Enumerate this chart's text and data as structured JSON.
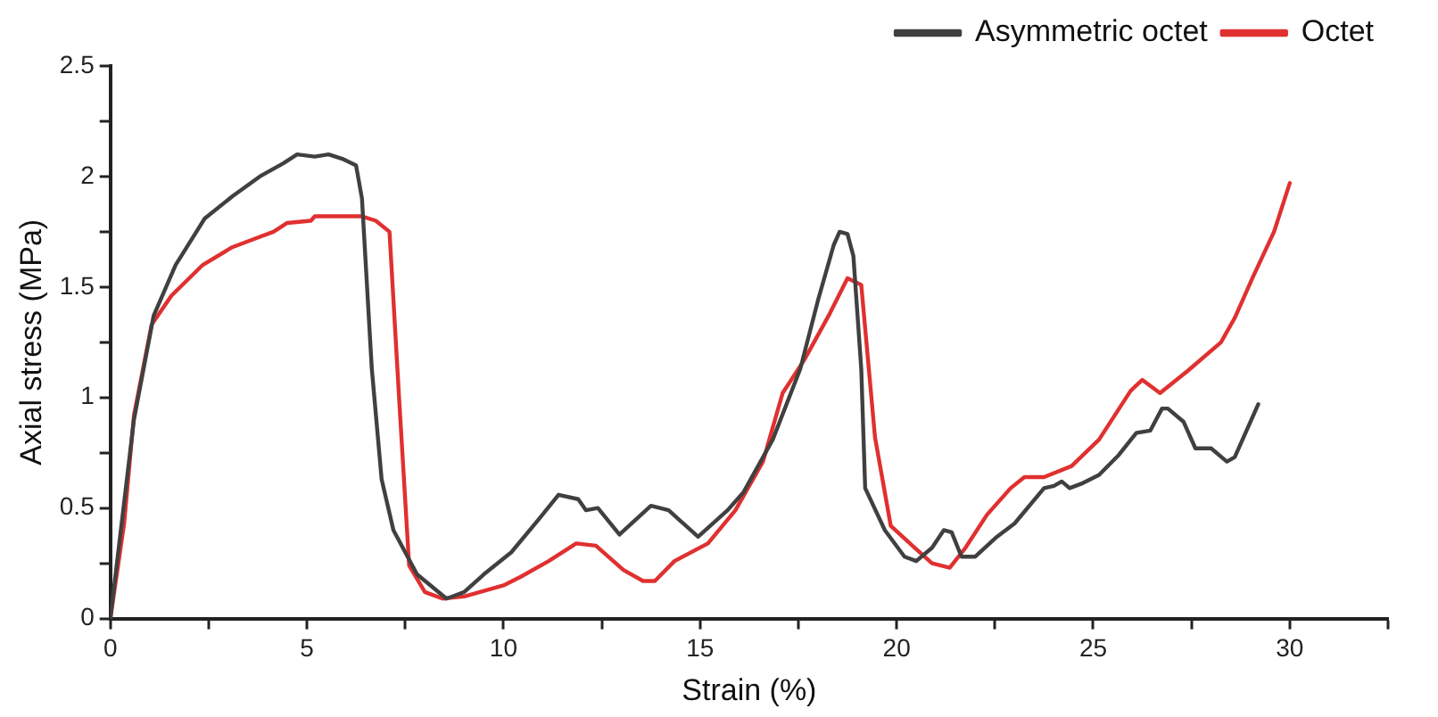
{
  "chart_data": {
    "type": "line",
    "xlabel": "Strain (%)",
    "ylabel": "Axial stress (MPa)",
    "xlim": [
      0,
      32.5
    ],
    "ylim": [
      0,
      2.5
    ],
    "xticks": [
      0,
      {
        "value": 2.5,
        "label": null
      },
      5,
      {
        "value": 7.5,
        "label": null
      },
      10,
      {
        "value": 12.5,
        "label": null
      },
      15,
      {
        "value": 17.5,
        "label": null
      },
      20,
      {
        "value": 22.5,
        "label": null
      },
      25,
      {
        "value": 27.5,
        "label": null
      },
      30,
      {
        "value": 32.5,
        "label": null
      }
    ],
    "yticks": [
      0,
      {
        "value": 0.25,
        "label": null
      },
      0.5,
      {
        "value": 0.75,
        "label": null
      },
      1,
      {
        "value": 1.25,
        "label": null
      },
      1.5,
      {
        "value": 1.75,
        "label": null
      },
      2,
      {
        "value": 2.25,
        "label": null
      },
      2.5
    ],
    "grid": false,
    "legend": "top right",
    "marker": "none",
    "line_style": "solid",
    "series": [
      {
        "name": "Asymmetric octet",
        "color": "#404040",
        "x": [
          0,
          0.3,
          0.6,
          1.1,
          1.66,
          2.4,
          3.1,
          3.8,
          4.4,
          4.75,
          5.2,
          5.55,
          5.9,
          6.25,
          6.4,
          6.65,
          6.9,
          7.2,
          7.8,
          8.55,
          9.0,
          9.5,
          10.2,
          10.9,
          11.4,
          11.9,
          12.1,
          12.4,
          12.95,
          13.75,
          14.2,
          14.95,
          15.7,
          16.1,
          16.85,
          17.55,
          18.0,
          18.4,
          18.55,
          18.75,
          18.9,
          19.1,
          19.2,
          19.7,
          20.2,
          20.5,
          20.9,
          21.2,
          21.4,
          21.65,
          22.0,
          22.55,
          23.0,
          23.75,
          24.0,
          24.2,
          24.4,
          24.7,
          25.15,
          25.65,
          26.1,
          26.45,
          26.75,
          26.9,
          27.3,
          27.6,
          28.0,
          28.4,
          28.6,
          29.2
        ],
        "values": [
          0,
          0.45,
          0.9,
          1.37,
          1.6,
          1.81,
          1.91,
          2.0,
          2.06,
          2.1,
          2.09,
          2.1,
          2.08,
          2.05,
          1.9,
          1.13,
          0.63,
          0.4,
          0.2,
          0.09,
          0.12,
          0.2,
          0.3,
          0.45,
          0.56,
          0.54,
          0.49,
          0.5,
          0.38,
          0.51,
          0.49,
          0.37,
          0.49,
          0.57,
          0.81,
          1.13,
          1.44,
          1.69,
          1.75,
          1.74,
          1.64,
          1.13,
          0.59,
          0.4,
          0.28,
          0.26,
          0.32,
          0.4,
          0.39,
          0.28,
          0.28,
          0.37,
          0.43,
          0.59,
          0.6,
          0.62,
          0.59,
          0.61,
          0.65,
          0.74,
          0.84,
          0.85,
          0.95,
          0.95,
          0.89,
          0.77,
          0.77,
          0.71,
          0.73,
          0.97
        ]
      },
      {
        "name": "Octet",
        "color": "#e03030",
        "x": [
          0,
          0.35,
          0.6,
          1.05,
          1.55,
          2.35,
          3.1,
          3.7,
          4.15,
          4.5,
          5.1,
          5.2,
          5.7,
          6.4,
          6.75,
          7.1,
          7.35,
          7.6,
          8.0,
          8.45,
          9.0,
          10.0,
          10.45,
          11.15,
          11.85,
          12.35,
          13.05,
          13.55,
          13.85,
          14.35,
          15.2,
          15.9,
          16.6,
          17.1,
          17.65,
          18.3,
          18.75,
          19.1,
          19.45,
          19.85,
          20.4,
          20.9,
          21.35,
          21.75,
          22.3,
          22.9,
          23.25,
          23.75,
          24.45,
          25.15,
          25.95,
          26.25,
          26.7,
          27.4,
          28.25,
          28.6,
          29.05,
          29.6,
          30.0
        ],
        "values": [
          0,
          0.43,
          0.92,
          1.33,
          1.46,
          1.6,
          1.68,
          1.72,
          1.75,
          1.79,
          1.8,
          1.82,
          1.82,
          1.82,
          1.8,
          1.75,
          0.98,
          0.24,
          0.12,
          0.09,
          0.1,
          0.15,
          0.19,
          0.26,
          0.34,
          0.33,
          0.22,
          0.17,
          0.17,
          0.26,
          0.34,
          0.49,
          0.71,
          1.02,
          1.17,
          1.38,
          1.54,
          1.51,
          0.82,
          0.42,
          0.33,
          0.25,
          0.23,
          0.32,
          0.47,
          0.59,
          0.64,
          0.64,
          0.69,
          0.81,
          1.03,
          1.08,
          1.02,
          1.12,
          1.25,
          1.36,
          1.54,
          1.75,
          1.97
        ]
      }
    ]
  }
}
